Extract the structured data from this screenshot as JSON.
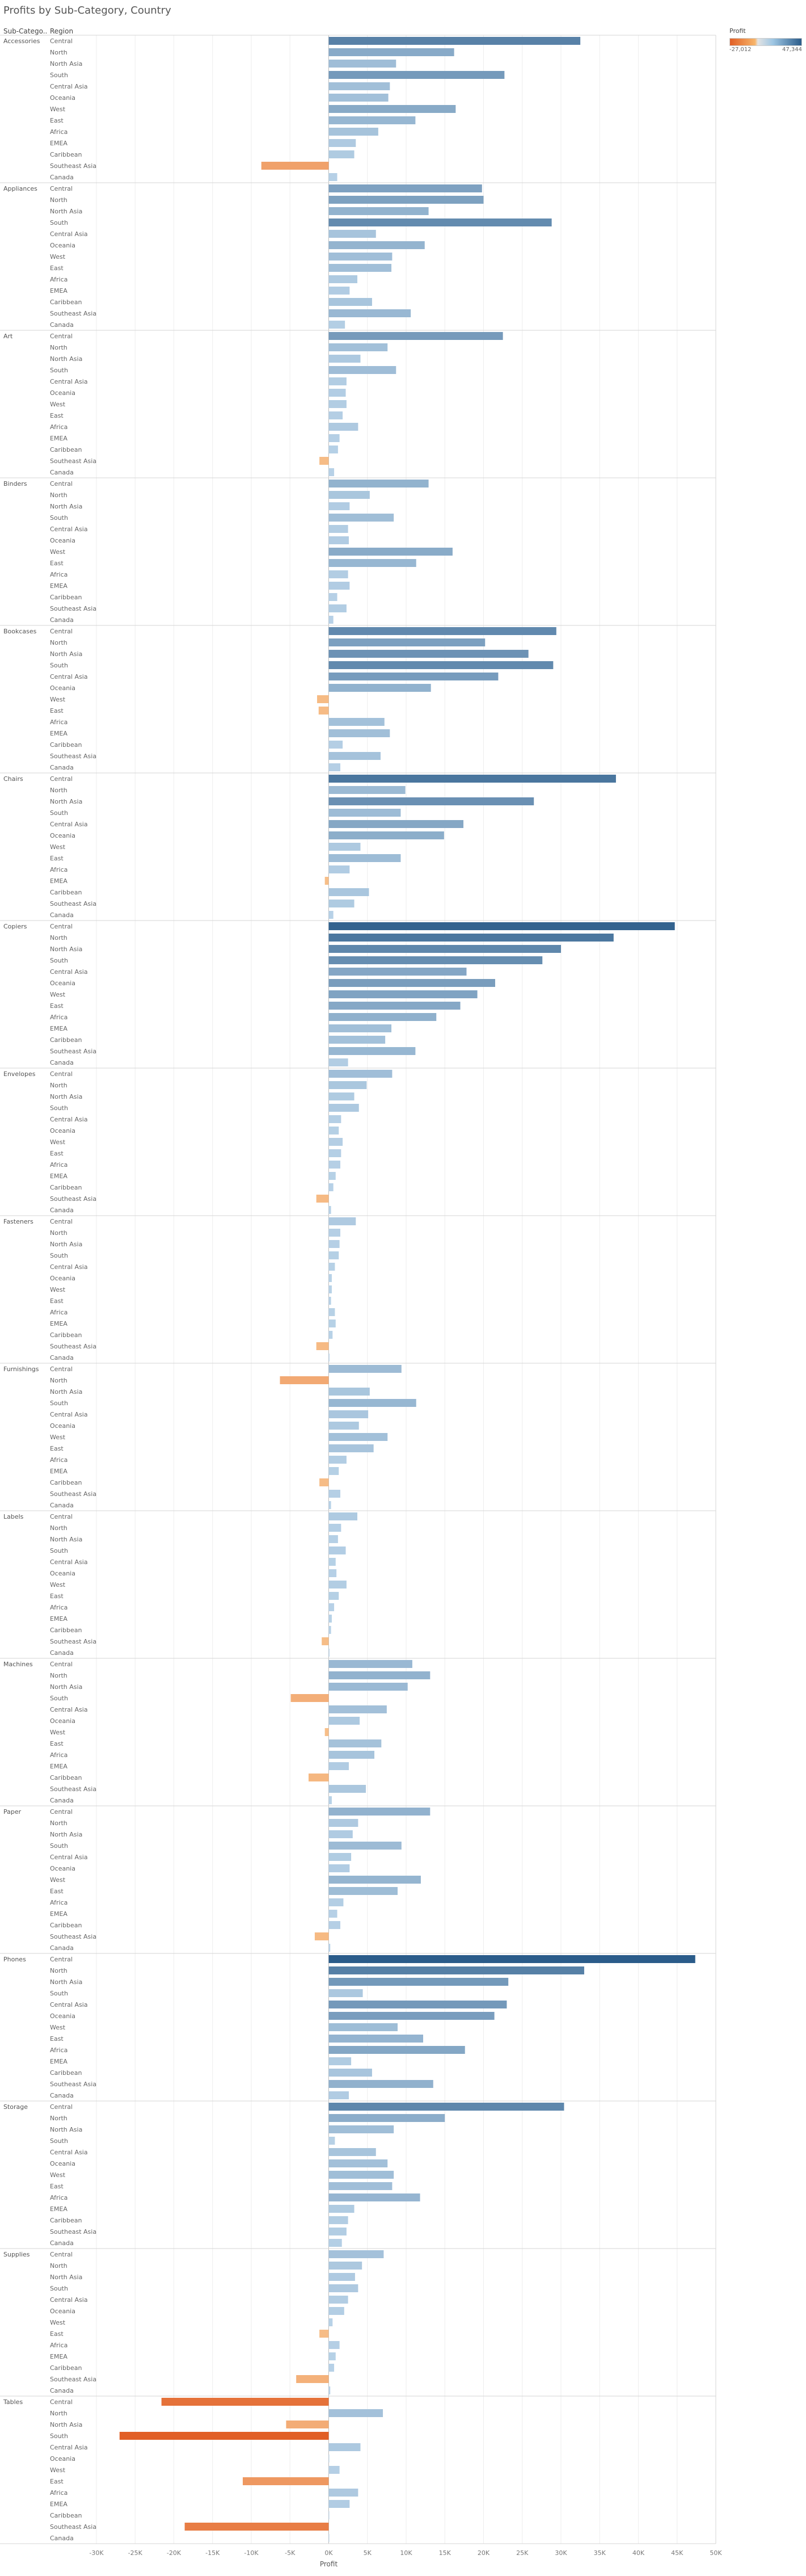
{
  "title": "Profits by Sub-Category, Country",
  "headers": {
    "subcategory": "Sub-Catego..",
    "region": "Region"
  },
  "legend": {
    "title": "Profit",
    "min_label": "-27,012",
    "max_label": "47,344",
    "min": -27012,
    "max": 47344
  },
  "colors": {
    "negative_strong": "#e15f26",
    "negative_light": "#f7c08a",
    "neutral": "#d9d9d9",
    "positive_light": "#b9d3e8",
    "positive_strong": "#2b5c8a"
  },
  "chart_data": {
    "type": "bar",
    "orientation": "horizontal",
    "title": "Profits by Sub-Category, Country",
    "xlabel": "Profit",
    "xlim": [
      -30000,
      50000
    ],
    "x_ticks": [
      "-30K",
      "-25K",
      "-20K",
      "-15K",
      "-10K",
      "-5K",
      "0K",
      "5K",
      "10K",
      "15K",
      "20K",
      "25K",
      "30K",
      "35K",
      "40K",
      "45K",
      "50K"
    ],
    "regions": [
      "Central",
      "North",
      "North Asia",
      "South",
      "Central Asia",
      "Oceania",
      "West",
      "East",
      "Africa",
      "EMEA",
      "Caribbean",
      "Southeast Asia",
      "Canada"
    ],
    "groups": [
      {
        "name": "Accessories",
        "values": [
          32500,
          16200,
          8700,
          22700,
          7900,
          7700,
          16400,
          11200,
          6400,
          3500,
          3300,
          -8700,
          1100
        ]
      },
      {
        "name": "Appliances",
        "values": [
          19800,
          20000,
          12900,
          28800,
          6100,
          12400,
          8200,
          8100,
          3700,
          2700,
          5600,
          10600,
          2100
        ]
      },
      {
        "name": "Art",
        "values": [
          22500,
          7600,
          4100,
          8700,
          2300,
          2200,
          2300,
          1800,
          3800,
          1400,
          1200,
          -1200,
          700
        ]
      },
      {
        "name": "Binders",
        "values": [
          12900,
          5300,
          2700,
          8400,
          2500,
          2600,
          16000,
          11300,
          2500,
          2700,
          1100,
          2300,
          600
        ]
      },
      {
        "name": "Bookcases",
        "values": [
          29400,
          20200,
          25800,
          29000,
          21900,
          13200,
          -1500,
          -1300,
          7200,
          7900,
          1800,
          6700,
          1500
        ]
      },
      {
        "name": "Chairs",
        "values": [
          37100,
          9900,
          26500,
          9300,
          17400,
          14900,
          4100,
          9300,
          2700,
          -500,
          5200,
          3300,
          600
        ]
      },
      {
        "name": "Copiers",
        "values": [
          44700,
          36800,
          30000,
          27600,
          17800,
          21500,
          19200,
          17000,
          13900,
          8100,
          7300,
          11200,
          2500
        ]
      },
      {
        "name": "Envelopes",
        "values": [
          8200,
          4900,
          3300,
          3900,
          1600,
          1300,
          1800,
          1600,
          1500,
          900,
          600,
          -1600,
          300
        ]
      },
      {
        "name": "Fasteners",
        "values": [
          3500,
          1500,
          1400,
          1300,
          800,
          400,
          400,
          300,
          800,
          900,
          500,
          -1600,
          100
        ]
      },
      {
        "name": "Furnishings",
        "values": [
          9400,
          -6300,
          5300,
          11300,
          5100,
          3900,
          7600,
          5800,
          2300,
          1300,
          -1200,
          1500,
          300
        ]
      },
      {
        "name": "Labels",
        "values": [
          3700,
          1600,
          1200,
          2200,
          900,
          1000,
          2300,
          1300,
          700,
          400,
          300,
          -900,
          100
        ]
      },
      {
        "name": "Machines",
        "values": [
          10800,
          13100,
          10200,
          -4900,
          7500,
          4000,
          -500,
          6800,
          5900,
          2600,
          -2600,
          4800,
          400
        ]
      },
      {
        "name": "Paper",
        "values": [
          13100,
          3800,
          3100,
          9400,
          2900,
          2700,
          11900,
          8900,
          1900,
          1100,
          1500,
          -1800,
          200
        ]
      },
      {
        "name": "Phones",
        "values": [
          47344,
          33000,
          23200,
          4400,
          23000,
          21400,
          8900,
          12200,
          17600,
          2900,
          5600,
          13500,
          2600
        ]
      },
      {
        "name": "Storage",
        "values": [
          30400,
          15000,
          8400,
          800,
          6100,
          7600,
          8400,
          8200,
          11800,
          3300,
          2500,
          2300,
          1700
        ]
      },
      {
        "name": "Supplies",
        "values": [
          7100,
          4300,
          3400,
          3800,
          2500,
          2000,
          500,
          -1200,
          1400,
          900,
          700,
          -4200,
          200
        ]
      },
      {
        "name": "Tables",
        "values": [
          -21600,
          7000,
          -5500,
          -27012,
          4100,
          0,
          1400,
          -11100,
          3800,
          2700,
          0,
          -18600,
          0
        ]
      }
    ]
  }
}
